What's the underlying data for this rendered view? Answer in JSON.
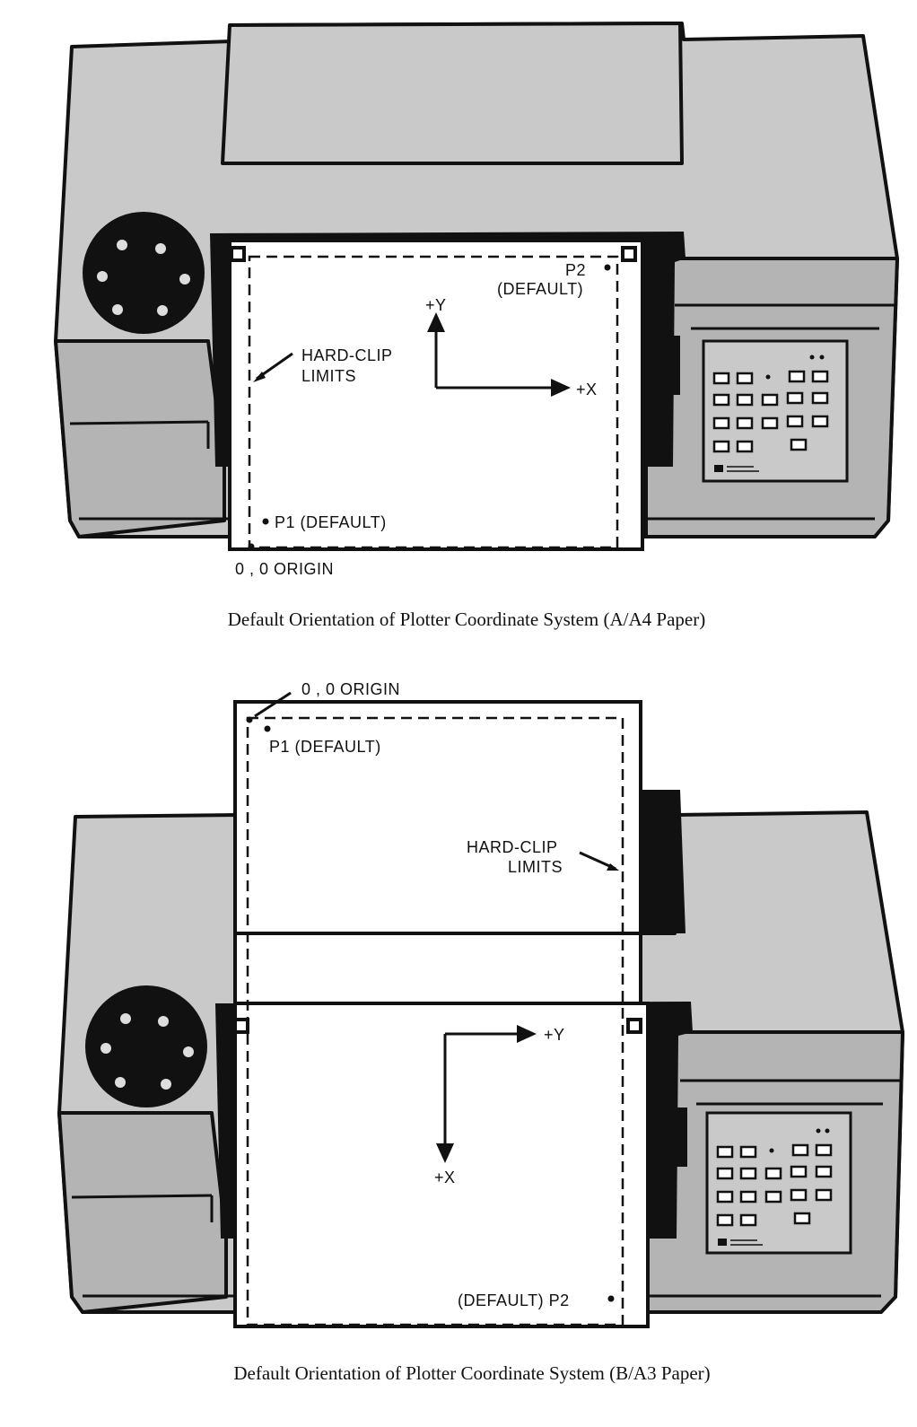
{
  "figure_a": {
    "caption": "Default Orientation of Plotter Coordinate System (A/A4 Paper)",
    "p2_label": "P2",
    "p2_default": "(DEFAULT)",
    "y_axis_label": "+Y",
    "x_axis_label": "+X",
    "hard_clip_line1": "HARD-CLIP",
    "hard_clip_line2": "LIMITS",
    "p1_label": "P1 (DEFAULT)",
    "origin_label": "0 , 0 ORIGIN"
  },
  "figure_b": {
    "caption": "Default Orientation of Plotter Coordinate System (B/A3 Paper)",
    "origin_label": "0 , 0 ORIGIN",
    "p1_label": "P1 (DEFAULT)",
    "hard_clip_line1": "HARD-CLIP",
    "hard_clip_line2": "LIMITS",
    "y_axis_label": "+Y",
    "x_axis_label": "+X",
    "p2_label": "(DEFAULT) P2"
  },
  "colors": {
    "housing": "#c9c9c9",
    "outline": "#111111",
    "paper": "#ffffff"
  }
}
